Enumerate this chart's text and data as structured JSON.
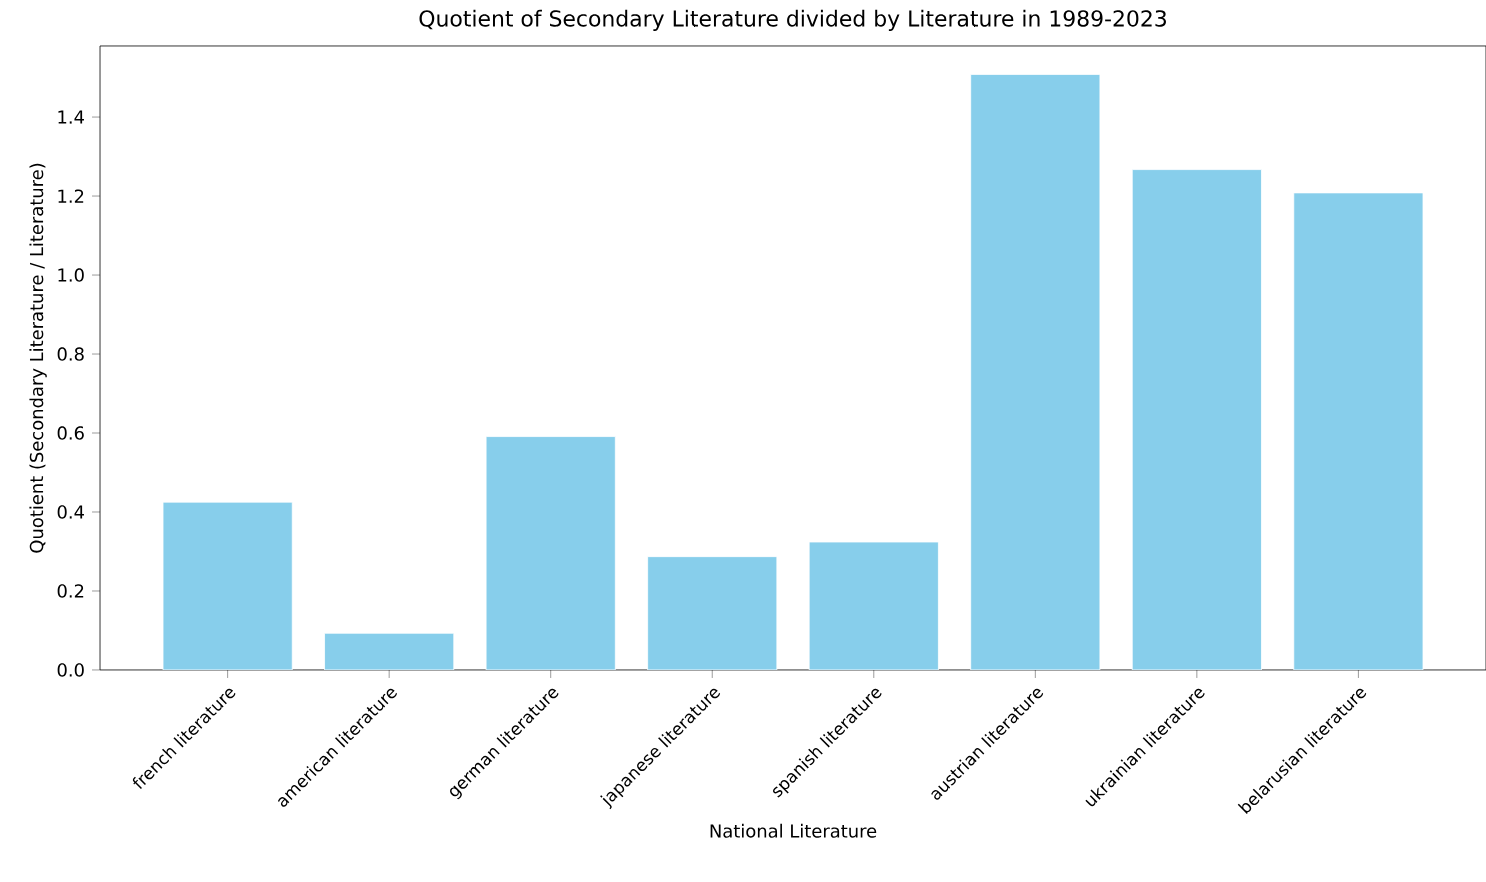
{
  "chart_data": {
    "type": "bar",
    "title": "Quotient of Secondary Literature divided by Literature in 1989-2023",
    "xlabel": "National Literature",
    "ylabel": "Quotient (Secondary Literature / Literature)",
    "categories": [
      "french literature",
      "american literature",
      "german literature",
      "japanese literature",
      "spanish literature",
      "austrian literature",
      "ukrainian literature",
      "belarusian literature"
    ],
    "values": [
      0.425,
      0.093,
      0.591,
      0.287,
      0.324,
      1.508,
      1.267,
      1.208
    ],
    "color": "#87ceeb",
    "ylim": [
      0,
      1.58
    ],
    "yticks": [
      {
        "value": 0,
        "label": "0.0"
      },
      0.2,
      0.4,
      0.6,
      0.8,
      {
        "value": 1,
        "label": "1.0"
      },
      1.2,
      1.4
    ],
    "grid": false
  }
}
